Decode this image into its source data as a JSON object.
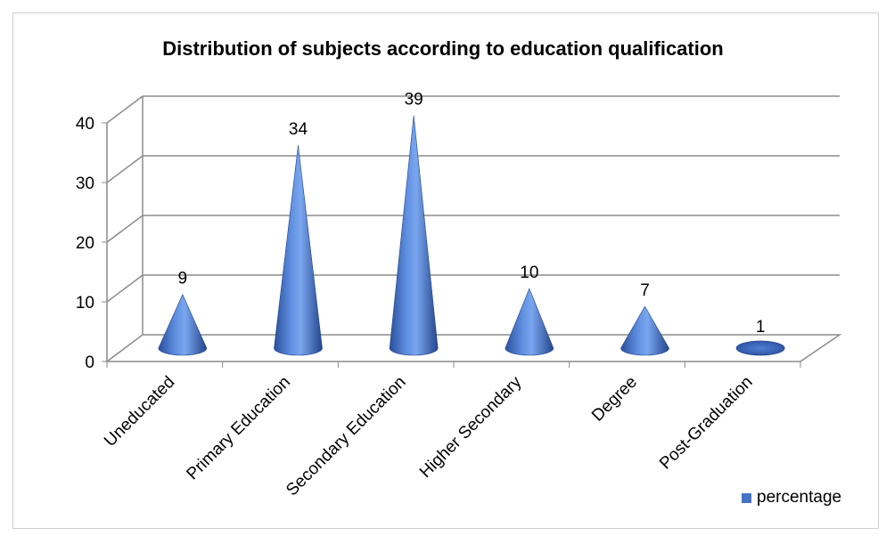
{
  "chart_data": {
    "type": "bar",
    "shape": "cone",
    "title": "Distribution of subjects according to education qualification",
    "categories": [
      "Uneducated",
      "Primary Education",
      "Secondary Education",
      "Higher Secondary",
      "Degree",
      "Post-Graduation"
    ],
    "series": [
      {
        "name": "percentage",
        "values": [
          9,
          34,
          39,
          10,
          7,
          1
        ]
      }
    ],
    "data_labels": [
      "9",
      "34",
      "39",
      "10",
      "7",
      "1"
    ],
    "y_ticks": [
      0,
      10,
      20,
      30,
      40
    ],
    "ylim": [
      0,
      40
    ],
    "grid": true,
    "legend_position": "bottom-right",
    "xlabel": "",
    "ylabel": "",
    "color": "#4472c4"
  }
}
